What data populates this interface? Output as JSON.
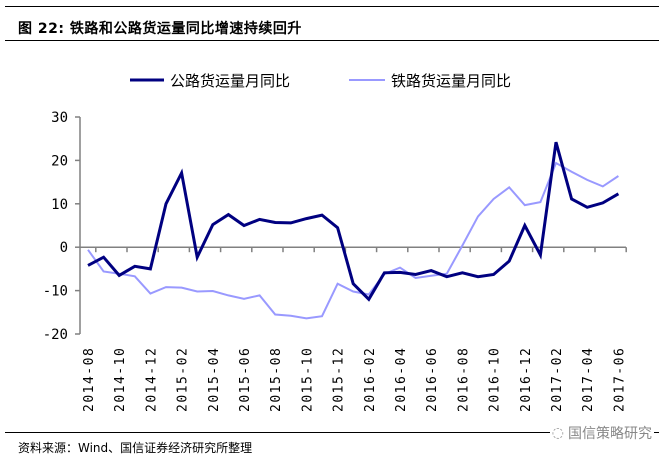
{
  "title": "图 22: 铁路和公路货运量同比增速持续回升",
  "footer": "资料来源：Wind、国信证券经济研究所整理",
  "logo_text": "国信策略研究",
  "chart_data": {
    "type": "line",
    "title": "图 22: 铁路和公路货运量同比增速持续回升",
    "xlabel": "",
    "ylabel": "",
    "ylim": [
      -20,
      30
    ],
    "yticks": [
      "30",
      "20",
      "10",
      "0",
      "-10",
      "-20"
    ],
    "ytick_values": [
      30,
      20,
      10,
      0,
      -10,
      -20
    ],
    "legend_position": "top",
    "x": [
      "2014-08",
      "2014-09",
      "2014-10",
      "2014-11",
      "2014-12",
      "2015-01",
      "2015-02",
      "2015-03",
      "2015-04",
      "2015-05",
      "2015-06",
      "2015-07",
      "2015-08",
      "2015-09",
      "2015-10",
      "2015-11",
      "2015-12",
      "2016-01",
      "2016-02",
      "2016-03",
      "2016-04",
      "2016-05",
      "2016-06",
      "2016-07",
      "2016-08",
      "2016-09",
      "2016-10",
      "2016-11",
      "2016-12",
      "2017-01",
      "2017-02",
      "2017-03",
      "2017-04",
      "2017-05",
      "2017-06"
    ],
    "xtick_labels": [
      "2014-08",
      "2014-10",
      "2014-12",
      "2015-02",
      "2015-04",
      "2015-06",
      "2015-08",
      "2015-10",
      "2015-12",
      "2016-02",
      "2016-04",
      "2016-06",
      "2016-08",
      "2016-10",
      "2016-12",
      "2017-02",
      "2017-04",
      "2017-06"
    ],
    "series": [
      {
        "name": "公路货运量月同比",
        "color": "#000080",
        "values": [
          -4.2,
          -2.3,
          -6.5,
          -4.4,
          -5.0,
          10.0,
          17.1,
          -2.3,
          5.2,
          7.5,
          5.0,
          6.4,
          5.7,
          5.6,
          6.6,
          7.4,
          4.5,
          -8.4,
          -12.0,
          -5.9,
          -5.8,
          -6.3,
          -5.4,
          -6.8,
          -5.9,
          -6.8,
          -6.3,
          -3.2,
          5.0,
          -1.8,
          24.2,
          11.1,
          9.2,
          10.2,
          12.3
        ]
      },
      {
        "name": "铁路货运量月同比",
        "color": "#9999FF",
        "values": [
          -0.6,
          -5.6,
          -6.1,
          -6.7,
          -10.7,
          -9.2,
          -9.3,
          -10.2,
          -10.1,
          -11.1,
          -11.9,
          -11.1,
          -15.5,
          -15.8,
          -16.4,
          -15.9,
          -8.4,
          -10.2,
          -10.9,
          -6.2,
          -4.7,
          -7.1,
          -6.6,
          -6.1,
          0.4,
          7.1,
          11.1,
          13.8,
          9.7,
          10.4,
          19.4,
          17.4,
          15.5,
          14.0,
          16.4
        ]
      }
    ]
  }
}
